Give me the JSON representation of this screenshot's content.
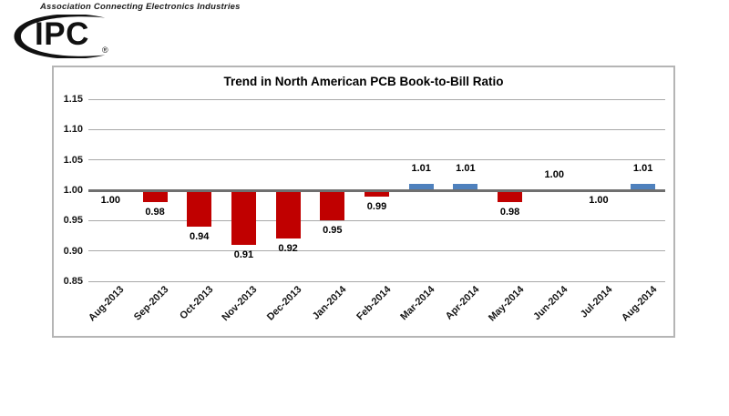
{
  "header": {
    "tagline": "Association Connecting Electronics Industries",
    "logo_text": "IPC",
    "logo_registered": "®"
  },
  "chart_data": {
    "type": "bar",
    "title": "Trend in North American PCB Book-to-Bill Ratio",
    "categories": [
      "Aug-2013",
      "Sep-2013",
      "Oct-2013",
      "Nov-2013",
      "Dec-2013",
      "Jan-2014",
      "Feb-2014",
      "Mar-2014",
      "Apr-2014",
      "May-2014",
      "Jun-2014",
      "Jul-2014",
      "Aug-2014"
    ],
    "values": [
      1.0,
      0.98,
      0.94,
      0.91,
      0.92,
      0.95,
      0.99,
      1.01,
      1.01,
      0.98,
      1.0,
      1.0,
      1.01
    ],
    "labels": [
      "1.00",
      "0.98",
      "0.94",
      "0.91",
      "0.92",
      "0.95",
      "0.99",
      "1.01",
      "1.01",
      "0.98",
      "1.00",
      "1.00",
      "1.01"
    ],
    "label_side": [
      "below",
      "below",
      "below",
      "below",
      "below",
      "below",
      "below",
      "above",
      "above",
      "below",
      "above",
      "below",
      "above"
    ],
    "baseline": 1.0,
    "y_ticks": [
      "1.15",
      "1.10",
      "1.05",
      "1.00",
      "0.95",
      "0.90",
      "0.85"
    ],
    "ylim": [
      0.85,
      1.15
    ],
    "xlabel": "",
    "ylabel": "",
    "grid": true,
    "legend": "none",
    "colors": {
      "above_baseline_bar": "#4F81BD",
      "below_baseline_bar": "#C00000",
      "gridline": "#A9A9A9",
      "baseline_line": "#6F6F6F",
      "chart_border": "#B5B5B5",
      "text": "#000000"
    }
  }
}
